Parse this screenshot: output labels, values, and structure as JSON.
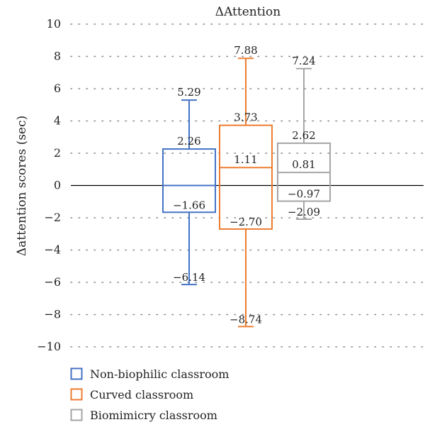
{
  "chart_data": {
    "type": "box",
    "title": "ΔAttention",
    "ylabel": "Δattention scores (sec)",
    "xlabel": "",
    "ylim": [
      -10,
      10
    ],
    "yticks": [
      -10,
      -8,
      -6,
      -4,
      -2,
      0,
      2,
      4,
      6,
      8,
      10
    ],
    "ytick_labels": [
      "−10",
      "−8",
      "−6",
      "−4",
      "−2",
      "0",
      "2",
      "4",
      "6",
      "8",
      "10"
    ],
    "grid": "dotted horizontal",
    "zero_line": true,
    "legend_position": "bottom-left",
    "series": [
      {
        "name": "Non-biophilic classroom",
        "color": "#4472C4",
        "min": -6.14,
        "q1": -1.66,
        "median": 0,
        "q3": 2.26,
        "max": 5.29,
        "labels": {
          "max": "5.29",
          "q3": "2.26",
          "q1": "−1.66",
          "min": "−6.14"
        }
      },
      {
        "name": "Curved classroom",
        "color": "#ED7D31",
        "min": -8.74,
        "q1": -2.7,
        "median": 1.11,
        "q3": 3.73,
        "max": 7.88,
        "labels": {
          "max": "7.88",
          "q3": "3.73",
          "median": "1.11",
          "q1": "−2.70",
          "min": "−8.74"
        }
      },
      {
        "name": "Biomimicry classroom",
        "color": "#A5A5A5",
        "min": -2.09,
        "q1": -0.97,
        "median": 0.81,
        "q3": 2.62,
        "max": 7.24,
        "labels": {
          "max": "7.24",
          "q3": "2.62",
          "median": "0.81",
          "q1": "−0.97",
          "min": "−2.09"
        }
      }
    ]
  }
}
